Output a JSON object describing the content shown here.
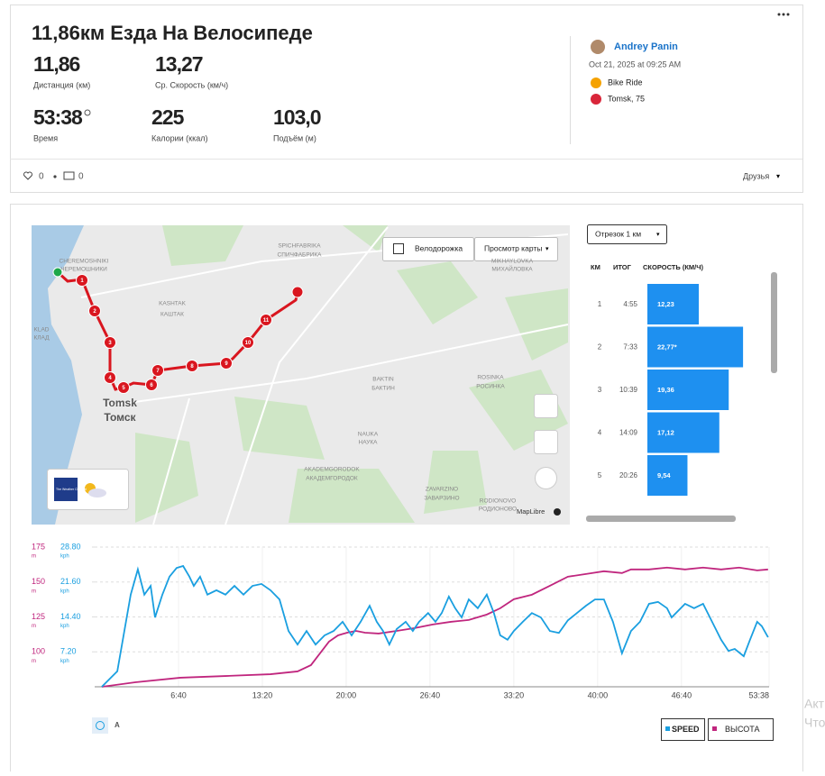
{
  "header": {
    "title": "11,86км Езда На Велосипеде",
    "stats": [
      {
        "value": "11,86",
        "label": "Дистанция (км)"
      },
      {
        "value": "13,27",
        "label": "Ср. Скорость (км/ч)"
      },
      {
        "value": "53:38",
        "label": "Время"
      },
      {
        "value": 225,
        "label": "Калории (ккал)"
      },
      {
        "value": "103,0",
        "label": "Подъём (м)"
      }
    ]
  },
  "athlete": {
    "name": "Andrey Panin",
    "date": "Oct 21, 2025 at 09:25 AM",
    "activity_type": "Bike Ride",
    "location": "Tomsk, 75"
  },
  "social": {
    "kudos": 0,
    "comments": 0,
    "visibility": "Друзья"
  },
  "map": {
    "bike_lane_toggle": "Велодорожка",
    "view_button": "Просмотр карты",
    "attribution": "MapLibre",
    "weather_badge": "The Weather Channel",
    "labels": [
      "CHEREMOSHNIKI",
      "ЧЕРЕМОШНИКИ",
      "KASHTAK",
      "КАШТАК",
      "SPICHFABRIKA",
      "СПИЧФАБРИКА",
      "MIKHAYLOVKA",
      "МИХАЙЛОВКА",
      "BAKTIN",
      "БАКТИН",
      "ROSINKA",
      "РОСИНКА",
      "Tomsk",
      "Томск",
      "NAUKA",
      "НАУКА",
      "AKADEMGORODOK",
      "АКАДЕМГОРОДОК",
      "ZAVARZINO",
      "ЗАВАРЗИНО",
      "RODIONOVO",
      "РОДИОНОВО",
      "KLAD",
      "КЛАД"
    ],
    "markers": [
      1,
      2,
      3,
      4,
      5,
      6,
      7,
      8,
      9,
      10,
      11
    ]
  },
  "splits": {
    "selector": "Отрезок 1 км",
    "columns": [
      "КМ",
      "ИТОГ",
      "СКОРОСТЬ (КМ/Ч)"
    ],
    "rows": [
      {
        "km": 1,
        "time": "4:55",
        "speed": {
          "value": 12.23,
          "label": "12,23"
        }
      },
      {
        "km": 2,
        "time": "7:33",
        "speed": {
          "value": 22.77,
          "label": "22,77*"
        }
      },
      {
        "km": 3,
        "time": "10:39",
        "speed": {
          "value": 19.36,
          "label": "19,36"
        }
      },
      {
        "km": 4,
        "time": "14:09",
        "speed": {
          "value": 17.12,
          "label": "17,12"
        }
      },
      {
        "km": 5,
        "time": "20:26",
        "speed": {
          "value": 9.54,
          "label": "9,54"
        }
      }
    ]
  },
  "chart": {
    "type": "line",
    "xlim": [
      0,
      3218
    ],
    "xticks": [
      {
        "value": 400,
        "label": "6:40"
      },
      {
        "value": 800,
        "label": "13:20"
      },
      {
        "value": 1200,
        "label": "20:00"
      },
      {
        "value": 1600,
        "label": "26:40"
      },
      {
        "value": 2000,
        "label": "33:20"
      },
      {
        "value": 2400,
        "label": "40:00"
      },
      {
        "value": 2800,
        "label": "46:40"
      },
      {
        "value": 3218,
        "label": "53:38"
      }
    ],
    "ylim": [
      0,
      28.8
    ],
    "yticks": [
      {
        "value": 7.2,
        "label": "7.20"
      },
      {
        "value": 14.4,
        "label": "14.40"
      },
      {
        "value": 21.6,
        "label": "21.60"
      },
      {
        "value": 28.8,
        "label": "28.80"
      }
    ],
    "y_unit": "kph",
    "y2lim": [
      75,
      175
    ],
    "y2ticks": [
      100,
      125,
      150,
      175
    ],
    "y2_unit": "m",
    "grid": true,
    "unit_toggle": "A",
    "series": [
      {
        "name": "SPEED",
        "color": "#1a9fe0",
        "x": [
          34,
          108,
          172,
          206,
          237,
          267,
          288,
          323,
          357,
          391,
          422,
          452,
          473,
          503,
          538,
          581,
          624,
          667,
          710,
          753,
          796,
          839,
          882,
          925,
          968,
          1011,
          1054,
          1097,
          1140,
          1183,
          1226,
          1269,
          1312,
          1346,
          1376,
          1406,
          1441,
          1484,
          1518,
          1548,
          1591,
          1626,
          1656,
          1690,
          1720,
          1751,
          1785,
          1828,
          1871,
          1905,
          1935,
          1970,
          2000,
          2043,
          2086,
          2129,
          2172,
          2215,
          2258,
          2301,
          2344,
          2387,
          2430,
          2473,
          2516,
          2559,
          2602,
          2645,
          2688,
          2731,
          2753,
          2817,
          2860,
          2903,
          2946,
          2989,
          3024,
          3054,
          3097,
          3127,
          3161,
          3183,
          3213
        ],
        "values": [
          0,
          3.2,
          19.0,
          24.2,
          19.0,
          20.8,
          14.3,
          19.0,
          22.7,
          24.5,
          24.9,
          22.7,
          20.8,
          22.7,
          19.0,
          19.9,
          19.0,
          20.8,
          19.0,
          20.8,
          21.2,
          19.9,
          18.0,
          11.5,
          8.7,
          11.5,
          8.7,
          10.6,
          11.5,
          13.4,
          10.6,
          13.4,
          16.7,
          13.4,
          11.5,
          8.7,
          11.9,
          13.4,
          11.5,
          13.4,
          15.2,
          13.4,
          15.2,
          18.6,
          16.2,
          14.3,
          18.0,
          16.2,
          19.0,
          15.2,
          10.6,
          9.7,
          11.5,
          13.4,
          15.2,
          14.3,
          11.5,
          11.1,
          13.7,
          15.2,
          16.7,
          18.0,
          18.0,
          13.4,
          6.9,
          11.5,
          13.4,
          17.1,
          17.5,
          16.2,
          14.3,
          17.1,
          16.2,
          17.1,
          13.4,
          9.7,
          7.4,
          7.8,
          6.3,
          9.7,
          13.4,
          12.5,
          10.2
        ]
      },
      {
        "name": "ВЫСОТА",
        "color": "#c0267e",
        "axis": "y2",
        "x": [
          34,
          194,
          409,
          624,
          839,
          968,
          1032,
          1075,
          1118,
          1161,
          1204,
          1247,
          1290,
          1355,
          1441,
          1527,
          1613,
          1699,
          1785,
          1871,
          1935,
          2000,
          2086,
          2172,
          2258,
          2344,
          2430,
          2516,
          2559,
          2645,
          2731,
          2817,
          2903,
          2989,
          3075,
          3161,
          3213
        ],
        "values": [
          75.0,
          78.2,
          81.5,
          82.7,
          84.0,
          86.0,
          90.5,
          98.9,
          107.3,
          111.8,
          113.7,
          115.0,
          113.7,
          113.1,
          115.0,
          117.0,
          119.6,
          121.5,
          122.8,
          126.7,
          131.2,
          137.7,
          140.9,
          147.3,
          153.8,
          155.7,
          157.7,
          156.4,
          159.0,
          159.0,
          160.3,
          159.0,
          160.3,
          159.0,
          160.3,
          158.3,
          159.0
        ]
      }
    ]
  },
  "watermark": [
    "Акт",
    "Что"
  ]
}
